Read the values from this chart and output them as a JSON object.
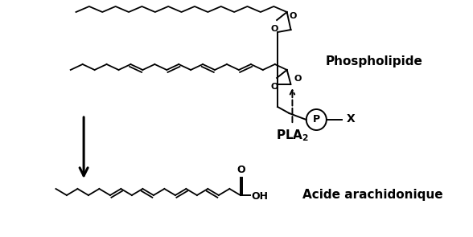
{
  "background": "#ffffff",
  "text_color": "#000000",
  "label_phospholipide": "Phospholipide",
  "label_aa": "Acide arachidonique",
  "label_x": "X",
  "label_p": "P",
  "label_o": "O",
  "label_oh": "OH",
  "lw": 1.4,
  "chain_lw": 1.3,
  "figw": 5.88,
  "figh": 2.95,
  "dpi": 100
}
